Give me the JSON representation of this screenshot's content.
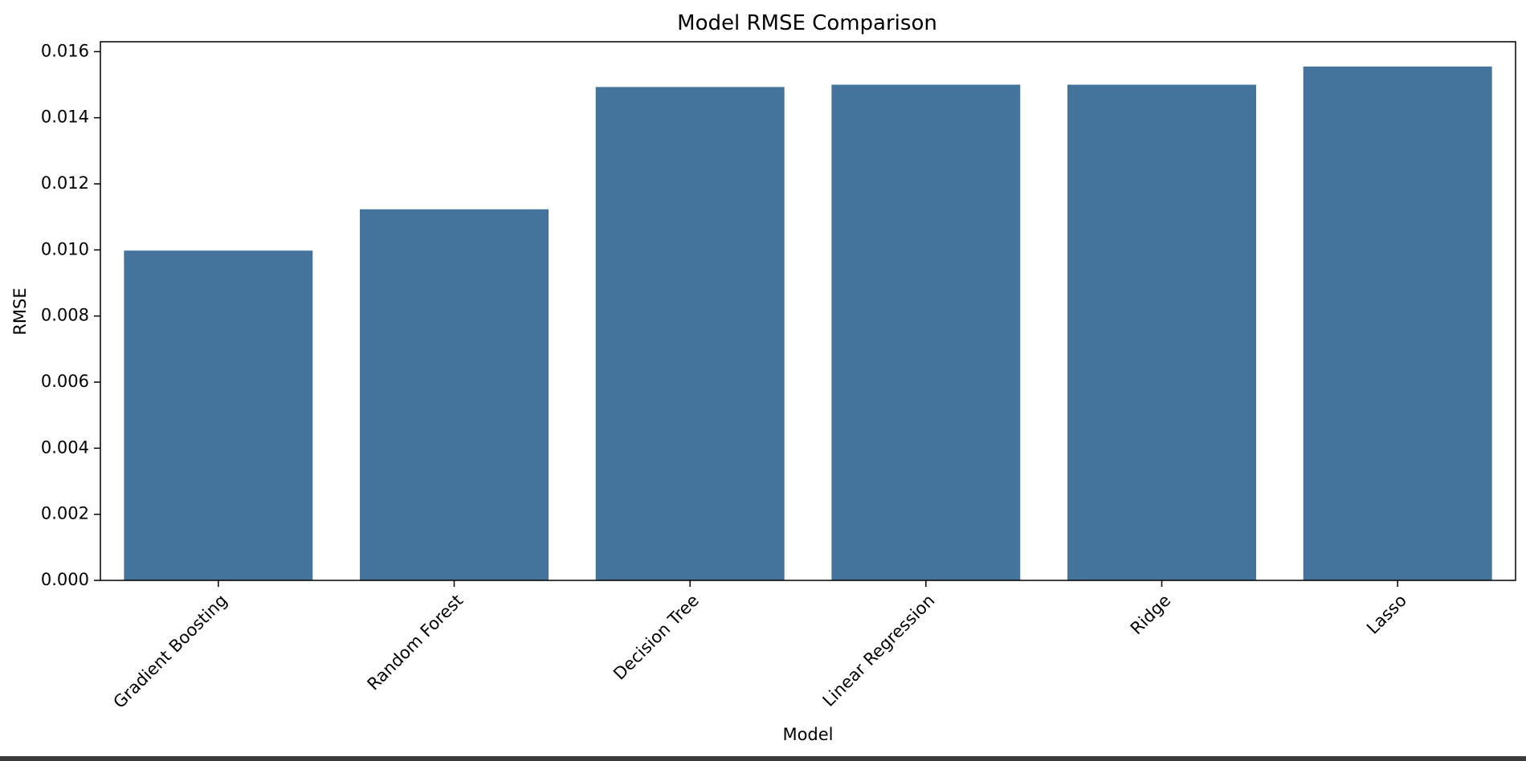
{
  "chart_data": {
    "type": "bar",
    "title": "Model RMSE Comparison",
    "xlabel": "Model",
    "ylabel": "RMSE",
    "categories": [
      "Gradient Boosting",
      "Random Forest",
      "Decision Tree",
      "Linear Regression",
      "Ridge",
      "Lasso"
    ],
    "values": [
      0.00998,
      0.01123,
      0.01493,
      0.015,
      0.015,
      0.01555
    ],
    "ylim": [
      0,
      0.0163
    ],
    "yticks": [
      "0.000",
      "0.002",
      "0.004",
      "0.006",
      "0.008",
      "0.010",
      "0.012",
      "0.014",
      "0.016"
    ],
    "grid": false,
    "colors": {
      "bar": "#44739c",
      "axis": "#000000"
    }
  }
}
